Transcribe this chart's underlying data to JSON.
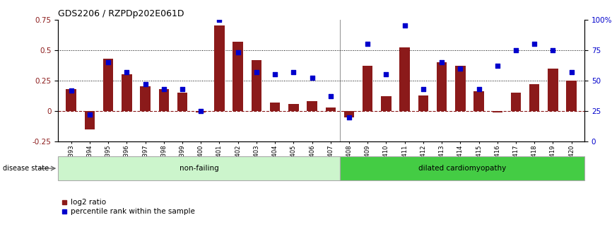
{
  "title": "GDS2206 / RZPDp202E061D",
  "categories": [
    "GSM82393",
    "GSM82394",
    "GSM82395",
    "GSM82396",
    "GSM82397",
    "GSM82398",
    "GSM82399",
    "GSM82400",
    "GSM82401",
    "GSM82402",
    "GSM82403",
    "GSM82404",
    "GSM82405",
    "GSM82406",
    "GSM82407",
    "GSM82408",
    "GSM82409",
    "GSM82410",
    "GSM82411",
    "GSM82412",
    "GSM82413",
    "GSM82414",
    "GSM82415",
    "GSM82416",
    "GSM82417",
    "GSM82418",
    "GSM82419",
    "GSM82420"
  ],
  "log2_ratio": [
    0.18,
    -0.15,
    0.43,
    0.3,
    0.2,
    0.18,
    0.15,
    -0.01,
    0.7,
    0.57,
    0.42,
    0.07,
    0.06,
    0.08,
    0.03,
    -0.05,
    0.37,
    0.12,
    0.52,
    0.13,
    0.4,
    0.37,
    0.16,
    -0.01,
    0.15,
    0.22,
    0.35,
    0.25
  ],
  "percentile": [
    42,
    22,
    65,
    57,
    47,
    43,
    43,
    25,
    100,
    73,
    57,
    55,
    57,
    52,
    37,
    20,
    80,
    55,
    95,
    43,
    65,
    60,
    43,
    62,
    75,
    80,
    75,
    57
  ],
  "non_failing_count": 15,
  "ylim_left": [
    -0.25,
    0.75
  ],
  "ylim_right": [
    0,
    100
  ],
  "bar_color": "#8B1A1A",
  "dot_color": "#0000CC",
  "non_failing_bg": "#ccf5cc",
  "dilated_bg": "#44cc44",
  "hline_color": "#8B1A1A",
  "dotline_color": "#000000",
  "right_tick_labels": [
    "0",
    "25",
    "50",
    "75",
    "100%"
  ]
}
